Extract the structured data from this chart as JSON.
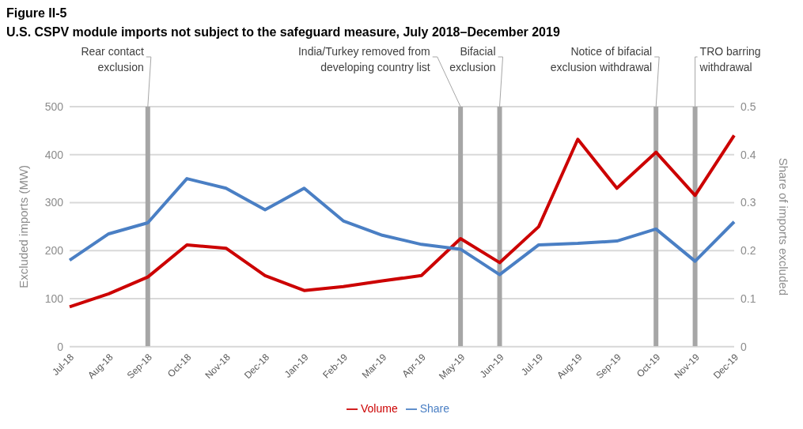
{
  "chart_data": {
    "type": "line",
    "title": "Figure II-5",
    "subtitle": "U.S. CSPV module imports not subject to the safeguard measure, July 2018–December 2019",
    "categories": [
      "Jul-18",
      "Aug-18",
      "Sep-18",
      "Oct-18",
      "Nov-18",
      "Dec-18",
      "Jan-19",
      "Feb-19",
      "Mar-19",
      "Apr-19",
      "May-19",
      "Jun-19",
      "Jul-19",
      "Aug-19",
      "Sep-19",
      "Oct-19",
      "Nov-19",
      "Dec-19"
    ],
    "series": [
      {
        "name": "Volume",
        "color": "#cc0000",
        "values": [
          83,
          110,
          145,
          212,
          205,
          148,
          117,
          125,
          137,
          148,
          225,
          175,
          250,
          432,
          330,
          405,
          315,
          440
        ]
      },
      {
        "name": "Share",
        "color": "#4a7fc4",
        "axis": "y2",
        "values": [
          0.18,
          0.235,
          0.258,
          0.35,
          0.33,
          0.285,
          0.33,
          0.262,
          0.232,
          0.213,
          0.203,
          0.15,
          0.212,
          0.215,
          0.22,
          0.245,
          0.178,
          0.26
        ]
      }
    ],
    "ylabel": "Excluded imports (MW)",
    "y2label": "Share of imports excluded",
    "ylim": [
      0,
      500
    ],
    "yticks": [
      0,
      100,
      200,
      300,
      400,
      500
    ],
    "y2lim": [
      0,
      0.5
    ],
    "y2ticks": [
      0,
      0.1,
      0.2,
      0.3,
      0.4,
      0.5
    ],
    "ref_lines": [
      {
        "axis": "x",
        "value": "Sep-18",
        "label": "Rear contact exclusion",
        "color": "#a6a6a6"
      },
      {
        "axis": "x",
        "value": "May-19",
        "label": "India/Turkey removed from developing country list",
        "color": "#a6a6a6"
      },
      {
        "axis": "x",
        "value": "Jun-19",
        "label": "Bifacial exclusion",
        "color": "#a6a6a6"
      },
      {
        "axis": "x",
        "value": "Oct-19",
        "label": "Notice of bifacial exclusion withdrawal",
        "color": "#a6a6a6"
      },
      {
        "axis": "x",
        "value": "Nov-19",
        "label": "TRO barring withdrawal",
        "color": "#a6a6a6"
      }
    ],
    "grid": "y",
    "legend": "bottom",
    "marker": "none",
    "line_style": "solid"
  }
}
